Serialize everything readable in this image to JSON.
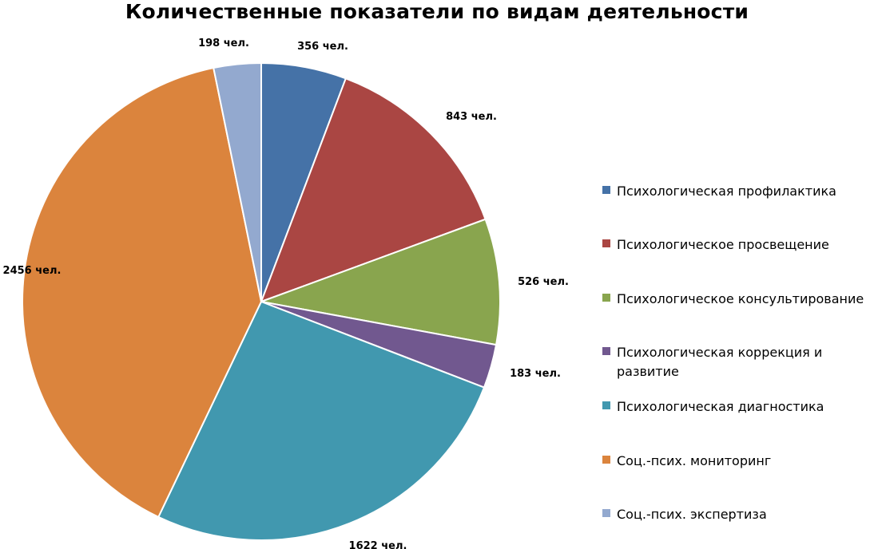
{
  "chart_data": {
    "type": "pie",
    "title": "Количественные показатели по видам деятельности",
    "legend_position": "right",
    "slices": [
      {
        "name": "Психологическая профилактика",
        "value": 356,
        "label": "356 чел.",
        "color": "#4572A7"
      },
      {
        "name": "Психологическое просвещение",
        "value": 843,
        "label": "843 чел.",
        "color": "#AA4643"
      },
      {
        "name": "Психологическое консультирование",
        "value": 526,
        "label": "526 чел.",
        "color": "#89A54E"
      },
      {
        "name": "Психологическая коррекция и развитие",
        "value": 183,
        "label": "183 чел.",
        "color": "#71588F"
      },
      {
        "name": "Психологическая диагностика",
        "value": 1622,
        "label": "1622 чел.",
        "color": "#4198AF"
      },
      {
        "name": "Соц.-псих. мониторинг",
        "value": 2456,
        "label": "2456 чел.",
        "color": "#DB843D"
      },
      {
        "name": "Соц.-псих. экспертиза",
        "value": 198,
        "label": "198 чел.",
        "color": "#93A9CF"
      }
    ]
  }
}
